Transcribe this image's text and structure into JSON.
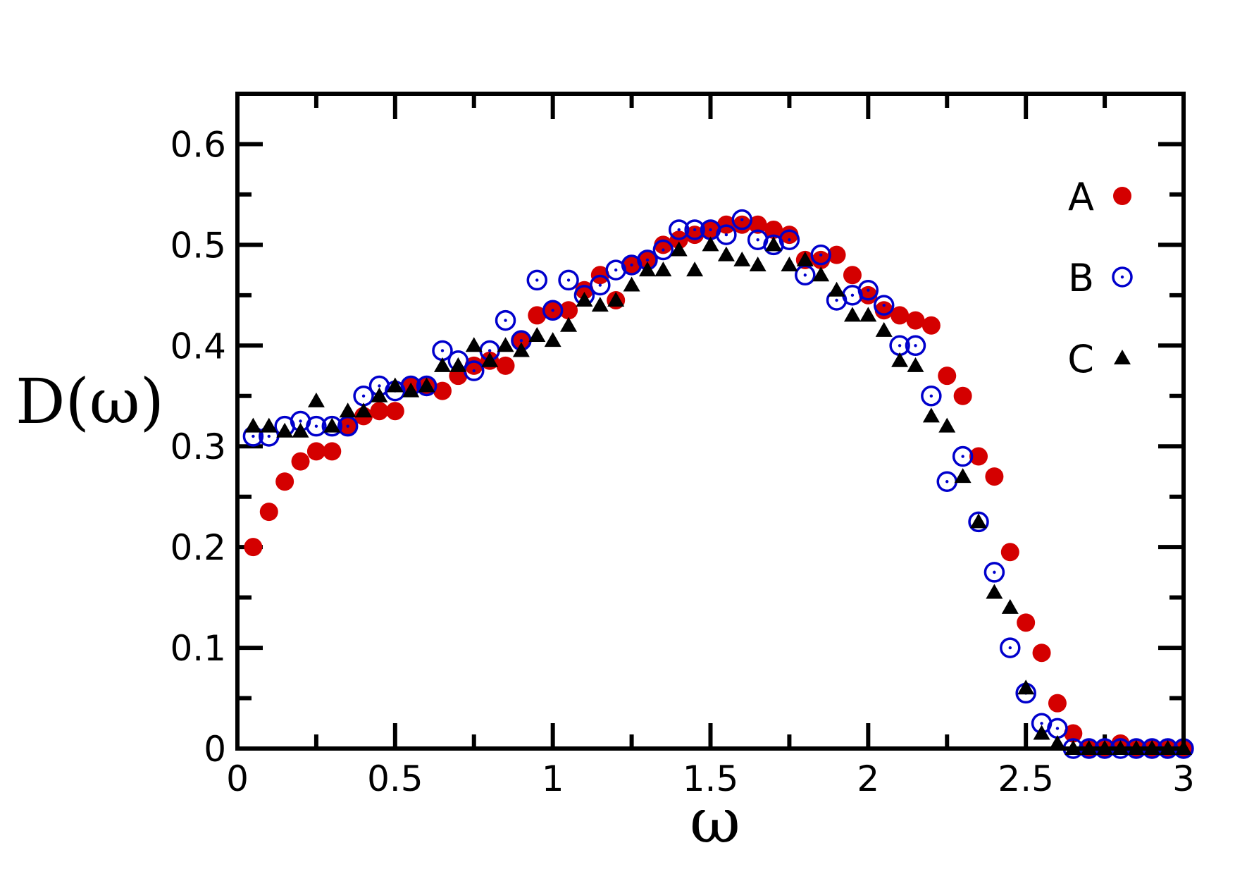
{
  "chart_data": {
    "type": "scatter",
    "title": "",
    "xlabel": "ω",
    "ylabel": "D(ω)",
    "xlim": [
      0,
      3
    ],
    "ylim": [
      0,
      0.65
    ],
    "xticks": [
      {
        "value": 0,
        "label": "0"
      },
      {
        "value": 0.5,
        "label": "0.5"
      },
      {
        "value": 1,
        "label": "1"
      },
      {
        "value": 1.5,
        "label": "1.5"
      },
      {
        "value": 2,
        "label": "2"
      },
      {
        "value": 2.5,
        "label": "2.5"
      },
      {
        "value": 3,
        "label": "3"
      }
    ],
    "yticks": [
      {
        "value": 0,
        "label": "0"
      },
      {
        "value": 0.1,
        "label": "0.1"
      },
      {
        "value": 0.2,
        "label": "0.2"
      },
      {
        "value": 0.3,
        "label": "0.3"
      },
      {
        "value": 0.4,
        "label": "0.4"
      },
      {
        "value": 0.5,
        "label": "0.5"
      },
      {
        "value": 0.6,
        "label": "0.6"
      }
    ],
    "x_minor_step": 0.25,
    "y_minor_step": 0.05,
    "grid": false,
    "legend_position": "top-right",
    "series": [
      {
        "name": "A",
        "marker": "filled-circle",
        "color": "#d40000",
        "points": [
          [
            0.05,
            0.2
          ],
          [
            0.1,
            0.235
          ],
          [
            0.15,
            0.265
          ],
          [
            0.2,
            0.285
          ],
          [
            0.25,
            0.295
          ],
          [
            0.3,
            0.295
          ],
          [
            0.35,
            0.32
          ],
          [
            0.4,
            0.33
          ],
          [
            0.45,
            0.335
          ],
          [
            0.5,
            0.335
          ],
          [
            0.55,
            0.36
          ],
          [
            0.6,
            0.36
          ],
          [
            0.65,
            0.355
          ],
          [
            0.7,
            0.37
          ],
          [
            0.75,
            0.38
          ],
          [
            0.8,
            0.385
          ],
          [
            0.85,
            0.38
          ],
          [
            0.9,
            0.405
          ],
          [
            0.95,
            0.43
          ],
          [
            1.0,
            0.435
          ],
          [
            1.05,
            0.435
          ],
          [
            1.1,
            0.455
          ],
          [
            1.15,
            0.47
          ],
          [
            1.2,
            0.445
          ],
          [
            1.25,
            0.48
          ],
          [
            1.3,
            0.485
          ],
          [
            1.35,
            0.5
          ],
          [
            1.4,
            0.505
          ],
          [
            1.45,
            0.51
          ],
          [
            1.5,
            0.515
          ],
          [
            1.55,
            0.52
          ],
          [
            1.6,
            0.52
          ],
          [
            1.65,
            0.52
          ],
          [
            1.7,
            0.515
          ],
          [
            1.75,
            0.51
          ],
          [
            1.8,
            0.485
          ],
          [
            1.85,
            0.485
          ],
          [
            1.9,
            0.49
          ],
          [
            1.95,
            0.47
          ],
          [
            2.0,
            0.45
          ],
          [
            2.05,
            0.435
          ],
          [
            2.1,
            0.43
          ],
          [
            2.15,
            0.425
          ],
          [
            2.2,
            0.42
          ],
          [
            2.25,
            0.37
          ],
          [
            2.3,
            0.35
          ],
          [
            2.35,
            0.29
          ],
          [
            2.4,
            0.27
          ],
          [
            2.45,
            0.195
          ],
          [
            2.5,
            0.125
          ],
          [
            2.55,
            0.095
          ],
          [
            2.6,
            0.045
          ],
          [
            2.65,
            0.015
          ],
          [
            2.7,
            0.0
          ],
          [
            2.75,
            0.0
          ],
          [
            2.8,
            0.005
          ],
          [
            2.85,
            0.0
          ],
          [
            2.9,
            0.0
          ],
          [
            2.95,
            0.0
          ],
          [
            3.0,
            0.0
          ]
        ]
      },
      {
        "name": "B",
        "marker": "open-circle-dot",
        "color": "#0000cc",
        "points": [
          [
            0.05,
            0.31
          ],
          [
            0.1,
            0.31
          ],
          [
            0.15,
            0.32
          ],
          [
            0.2,
            0.325
          ],
          [
            0.25,
            0.32
          ],
          [
            0.3,
            0.32
          ],
          [
            0.35,
            0.32
          ],
          [
            0.4,
            0.35
          ],
          [
            0.45,
            0.36
          ],
          [
            0.5,
            0.355
          ],
          [
            0.55,
            0.36
          ],
          [
            0.6,
            0.36
          ],
          [
            0.65,
            0.395
          ],
          [
            0.7,
            0.385
          ],
          [
            0.75,
            0.375
          ],
          [
            0.8,
            0.395
          ],
          [
            0.85,
            0.425
          ],
          [
            0.9,
            0.405
          ],
          [
            0.95,
            0.465
          ],
          [
            1.0,
            0.435
          ],
          [
            1.05,
            0.465
          ],
          [
            1.1,
            0.45
          ],
          [
            1.15,
            0.46
          ],
          [
            1.2,
            0.475
          ],
          [
            1.25,
            0.48
          ],
          [
            1.3,
            0.485
          ],
          [
            1.35,
            0.495
          ],
          [
            1.4,
            0.515
          ],
          [
            1.45,
            0.515
          ],
          [
            1.5,
            0.515
          ],
          [
            1.55,
            0.51
          ],
          [
            1.6,
            0.525
          ],
          [
            1.65,
            0.505
          ],
          [
            1.7,
            0.5
          ],
          [
            1.75,
            0.505
          ],
          [
            1.8,
            0.47
          ],
          [
            1.85,
            0.49
          ],
          [
            1.9,
            0.445
          ],
          [
            1.95,
            0.45
          ],
          [
            2.0,
            0.455
          ],
          [
            2.05,
            0.44
          ],
          [
            2.1,
            0.4
          ],
          [
            2.15,
            0.4
          ],
          [
            2.2,
            0.35
          ],
          [
            2.25,
            0.265
          ],
          [
            2.3,
            0.29
          ],
          [
            2.35,
            0.225
          ],
          [
            2.4,
            0.175
          ],
          [
            2.45,
            0.1
          ],
          [
            2.5,
            0.055
          ],
          [
            2.55,
            0.025
          ],
          [
            2.6,
            0.02
          ],
          [
            2.65,
            0.0
          ],
          [
            2.7,
            0.0
          ],
          [
            2.75,
            0.0
          ],
          [
            2.8,
            0.0
          ],
          [
            2.85,
            0.0
          ],
          [
            2.9,
            0.0
          ],
          [
            2.95,
            0.0
          ],
          [
            3.0,
            0.0
          ]
        ]
      },
      {
        "name": "C",
        "marker": "filled-triangle",
        "color": "#000000",
        "points": [
          [
            0.05,
            0.32
          ],
          [
            0.1,
            0.32
          ],
          [
            0.15,
            0.315
          ],
          [
            0.2,
            0.315
          ],
          [
            0.25,
            0.345
          ],
          [
            0.3,
            0.32
          ],
          [
            0.35,
            0.335
          ],
          [
            0.4,
            0.335
          ],
          [
            0.45,
            0.35
          ],
          [
            0.5,
            0.36
          ],
          [
            0.55,
            0.355
          ],
          [
            0.6,
            0.36
          ],
          [
            0.65,
            0.38
          ],
          [
            0.7,
            0.38
          ],
          [
            0.75,
            0.4
          ],
          [
            0.8,
            0.385
          ],
          [
            0.85,
            0.4
          ],
          [
            0.9,
            0.395
          ],
          [
            0.95,
            0.41
          ],
          [
            1.0,
            0.405
          ],
          [
            1.05,
            0.42
          ],
          [
            1.1,
            0.445
          ],
          [
            1.15,
            0.44
          ],
          [
            1.2,
            0.445
          ],
          [
            1.25,
            0.46
          ],
          [
            1.3,
            0.475
          ],
          [
            1.35,
            0.475
          ],
          [
            1.4,
            0.495
          ],
          [
            1.45,
            0.475
          ],
          [
            1.5,
            0.5
          ],
          [
            1.55,
            0.49
          ],
          [
            1.6,
            0.485
          ],
          [
            1.65,
            0.48
          ],
          [
            1.7,
            0.5
          ],
          [
            1.75,
            0.48
          ],
          [
            1.8,
            0.485
          ],
          [
            1.85,
            0.47
          ],
          [
            1.9,
            0.455
          ],
          [
            1.95,
            0.43
          ],
          [
            2.0,
            0.43
          ],
          [
            2.05,
            0.415
          ],
          [
            2.1,
            0.385
          ],
          [
            2.15,
            0.38
          ],
          [
            2.2,
            0.33
          ],
          [
            2.25,
            0.32
          ],
          [
            2.3,
            0.27
          ],
          [
            2.35,
            0.225
          ],
          [
            2.4,
            0.155
          ],
          [
            2.45,
            0.14
          ],
          [
            2.5,
            0.06
          ],
          [
            2.55,
            0.015
          ],
          [
            2.6,
            0.005
          ],
          [
            2.65,
            0.0
          ],
          [
            2.7,
            0.0
          ],
          [
            2.75,
            0.0
          ],
          [
            2.8,
            0.0
          ],
          [
            2.85,
            0.0
          ],
          [
            2.9,
            0.0
          ],
          [
            2.95,
            0.0
          ],
          [
            3.0,
            0.0
          ]
        ]
      }
    ]
  }
}
